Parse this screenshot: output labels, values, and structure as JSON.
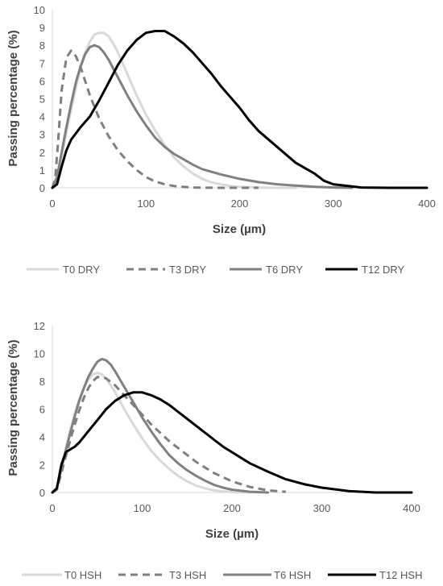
{
  "chart_data": [
    {
      "type": "line",
      "xlabel": "Size  (µm)",
      "ylabel": "Passing percentage (%)",
      "xlim": [
        0,
        400
      ],
      "ylim": [
        0,
        10
      ],
      "xticks": [
        "0",
        "100",
        "200",
        "300",
        "400"
      ],
      "yticks": [
        "0",
        "1",
        "2",
        "3",
        "4",
        "5",
        "6",
        "7",
        "8",
        "9",
        "10"
      ],
      "grid": false,
      "legend_position": "bottom",
      "series": [
        {
          "name": "T0 DRY",
          "color": "#d9d9d9",
          "dash": "solid",
          "x": [
            0,
            5,
            10,
            15,
            20,
            25,
            30,
            35,
            40,
            45,
            50,
            55,
            60,
            65,
            70,
            80,
            90,
            100,
            110,
            120,
            130,
            140,
            150,
            160,
            170,
            180,
            190,
            200,
            220,
            240,
            260
          ],
          "y": [
            0,
            0.5,
            1.8,
            3.1,
            4.4,
            5.6,
            6.7,
            7.6,
            8.2,
            8.6,
            8.7,
            8.7,
            8.5,
            8.1,
            7.6,
            6.4,
            5.2,
            4.1,
            3.2,
            2.4,
            1.7,
            1.2,
            0.8,
            0.5,
            0.3,
            0.2,
            0.1,
            0.05,
            0.02,
            0,
            0
          ]
        },
        {
          "name": "T3 DRY",
          "color": "#7f7f7f",
          "dash": "dashed",
          "x": [
            0,
            3,
            6,
            10,
            15,
            20,
            25,
            30,
            35,
            40,
            50,
            60,
            70,
            80,
            90,
            100,
            110,
            120,
            130,
            140,
            150,
            160,
            180,
            200,
            220
          ],
          "y": [
            0,
            0.5,
            2.5,
            5.5,
            7.3,
            7.7,
            7.4,
            6.8,
            6.0,
            5.2,
            3.9,
            2.9,
            2.1,
            1.5,
            1.0,
            0.6,
            0.35,
            0.2,
            0.1,
            0.05,
            0.02,
            0.01,
            0,
            0,
            0
          ]
        },
        {
          "name": "T6 DRY",
          "color": "#808080",
          "dash": "solid",
          "x": [
            0,
            5,
            10,
            15,
            20,
            25,
            30,
            35,
            40,
            45,
            50,
            55,
            60,
            70,
            80,
            90,
            100,
            110,
            120,
            130,
            140,
            150,
            160,
            180,
            200,
            220,
            240,
            260,
            280,
            300,
            320
          ],
          "y": [
            0,
            0.6,
            2.0,
            3.4,
            4.7,
            5.9,
            6.8,
            7.5,
            7.9,
            8.0,
            7.9,
            7.6,
            7.2,
            6.2,
            5.2,
            4.3,
            3.5,
            2.8,
            2.3,
            1.9,
            1.6,
            1.3,
            1.05,
            0.75,
            0.5,
            0.32,
            0.2,
            0.12,
            0.06,
            0.02,
            0
          ]
        },
        {
          "name": "T12 DRY",
          "color": "#000000",
          "dash": "solid",
          "x": [
            0,
            5,
            10,
            15,
            20,
            30,
            40,
            50,
            60,
            70,
            80,
            90,
            100,
            110,
            120,
            130,
            140,
            150,
            160,
            170,
            180,
            190,
            200,
            210,
            220,
            240,
            260,
            280,
            290,
            300,
            330,
            360,
            400
          ],
          "y": [
            0,
            0.2,
            1.2,
            2.1,
            2.7,
            3.4,
            4.0,
            4.9,
            5.9,
            6.9,
            7.7,
            8.3,
            8.7,
            8.8,
            8.8,
            8.5,
            8.1,
            7.6,
            7.0,
            6.4,
            5.7,
            5.1,
            4.5,
            3.8,
            3.2,
            2.3,
            1.4,
            0.8,
            0.4,
            0.2,
            0.02,
            0,
            0
          ]
        }
      ]
    },
    {
      "type": "line",
      "xlabel": "Size (µm)",
      "ylabel": "Passing percentage (%)",
      "xlim": [
        0,
        400
      ],
      "ylim": [
        0,
        12
      ],
      "xticks": [
        "0",
        "100",
        "200",
        "300",
        "400"
      ],
      "yticks": [
        "0",
        "2",
        "4",
        "6",
        "8",
        "10",
        "12"
      ],
      "grid": false,
      "legend_position": "bottom",
      "series": [
        {
          "name": "T0 HSH",
          "color": "#d9d9d9",
          "dash": "solid",
          "x": [
            0,
            5,
            10,
            15,
            20,
            25,
            30,
            35,
            40,
            45,
            50,
            55,
            60,
            70,
            80,
            90,
            100,
            110,
            120,
            130,
            140,
            150,
            160,
            170,
            180,
            190,
            200,
            220
          ],
          "y": [
            0,
            0.3,
            1.8,
            3.2,
            4.5,
            5.7,
            6.7,
            7.5,
            8.1,
            8.5,
            8.6,
            8.5,
            8.2,
            7.2,
            6.0,
            4.9,
            3.9,
            3.0,
            2.3,
            1.7,
            1.2,
            0.8,
            0.5,
            0.3,
            0.15,
            0.08,
            0.03,
            0
          ]
        },
        {
          "name": "T3 HSH",
          "color": "#7f7f7f",
          "dash": "dashed",
          "x": [
            0,
            5,
            10,
            15,
            20,
            25,
            30,
            35,
            40,
            45,
            50,
            55,
            60,
            70,
            80,
            90,
            100,
            110,
            120,
            130,
            140,
            150,
            160,
            170,
            180,
            190,
            200,
            220,
            240,
            260
          ],
          "y": [
            0,
            0.2,
            1.4,
            2.6,
            3.8,
            4.9,
            5.9,
            6.8,
            7.5,
            8.0,
            8.3,
            8.3,
            8.2,
            7.7,
            7.0,
            6.3,
            5.6,
            4.9,
            4.3,
            3.7,
            3.2,
            2.7,
            2.2,
            1.8,
            1.4,
            1.1,
            0.8,
            0.4,
            0.15,
            0.05
          ]
        },
        {
          "name": "T6 HSH",
          "color": "#808080",
          "dash": "solid",
          "x": [
            0,
            5,
            10,
            15,
            20,
            25,
            30,
            35,
            40,
            45,
            50,
            55,
            60,
            65,
            70,
            80,
            90,
            100,
            110,
            120,
            130,
            140,
            150,
            160,
            170,
            180,
            190,
            200,
            220,
            240
          ],
          "y": [
            0,
            0.3,
            1.7,
            3.0,
            4.3,
            5.5,
            6.6,
            7.5,
            8.3,
            8.9,
            9.4,
            9.6,
            9.5,
            9.2,
            8.7,
            7.6,
            6.5,
            5.4,
            4.4,
            3.5,
            2.7,
            2.1,
            1.6,
            1.2,
            0.85,
            0.55,
            0.35,
            0.2,
            0.05,
            0
          ]
        },
        {
          "name": "T12 HSH",
          "color": "#000000",
          "dash": "solid",
          "x": [
            0,
            5,
            10,
            15,
            20,
            25,
            30,
            40,
            50,
            60,
            70,
            80,
            90,
            100,
            110,
            120,
            130,
            140,
            150,
            160,
            170,
            180,
            190,
            200,
            220,
            240,
            260,
            280,
            300,
            330,
            360,
            400
          ],
          "y": [
            0,
            0.3,
            2.0,
            2.9,
            3.1,
            3.3,
            3.6,
            4.4,
            5.2,
            6.0,
            6.6,
            7.0,
            7.2,
            7.2,
            7.0,
            6.7,
            6.3,
            5.8,
            5.3,
            4.8,
            4.3,
            3.8,
            3.3,
            2.9,
            2.1,
            1.5,
            0.95,
            0.6,
            0.35,
            0.1,
            0,
            0
          ]
        }
      ]
    }
  ]
}
